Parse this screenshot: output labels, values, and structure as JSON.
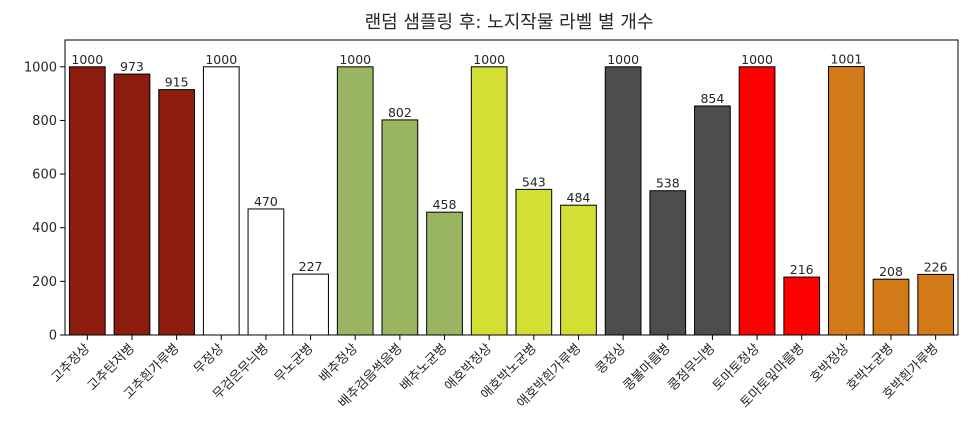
{
  "chart_data": {
    "type": "bar",
    "title": "랜덤 샘플링 후: 노지작물 라벨 별 개수",
    "xlabel": "",
    "ylabel": "",
    "ylim": [
      0,
      1100
    ],
    "yticks": [
      0,
      200,
      400,
      600,
      800,
      1000
    ],
    "grid": false,
    "categories": [
      "고추정상",
      "고추탄저병",
      "고추흰가루병",
      "무정상",
      "무검은무늬병",
      "무노균병",
      "배추정상",
      "배추검음썩음병",
      "배추노균병",
      "애호박정상",
      "애호박노균병",
      "애호박흰가루병",
      "콩정상",
      "콩불마름병",
      "콩점무늬병",
      "토마토정상",
      "토마토잎마름병",
      "호박정상",
      "호박노균병",
      "호박흰가루병"
    ],
    "values": [
      1000,
      973,
      915,
      1000,
      470,
      227,
      1000,
      802,
      458,
      1000,
      543,
      484,
      1000,
      538,
      854,
      1000,
      216,
      1001,
      208,
      226
    ],
    "colors": [
      "#8b1c0e",
      "#8b1c0e",
      "#8b1c0e",
      "#ffffff",
      "#ffffff",
      "#ffffff",
      "#9ab561",
      "#9ab561",
      "#9ab561",
      "#d4df36",
      "#d4df36",
      "#d4df36",
      "#4d4d4d",
      "#4d4d4d",
      "#4d4d4d",
      "#ff0000",
      "#ff0000",
      "#d27a17",
      "#d27a17",
      "#d27a17"
    ]
  }
}
